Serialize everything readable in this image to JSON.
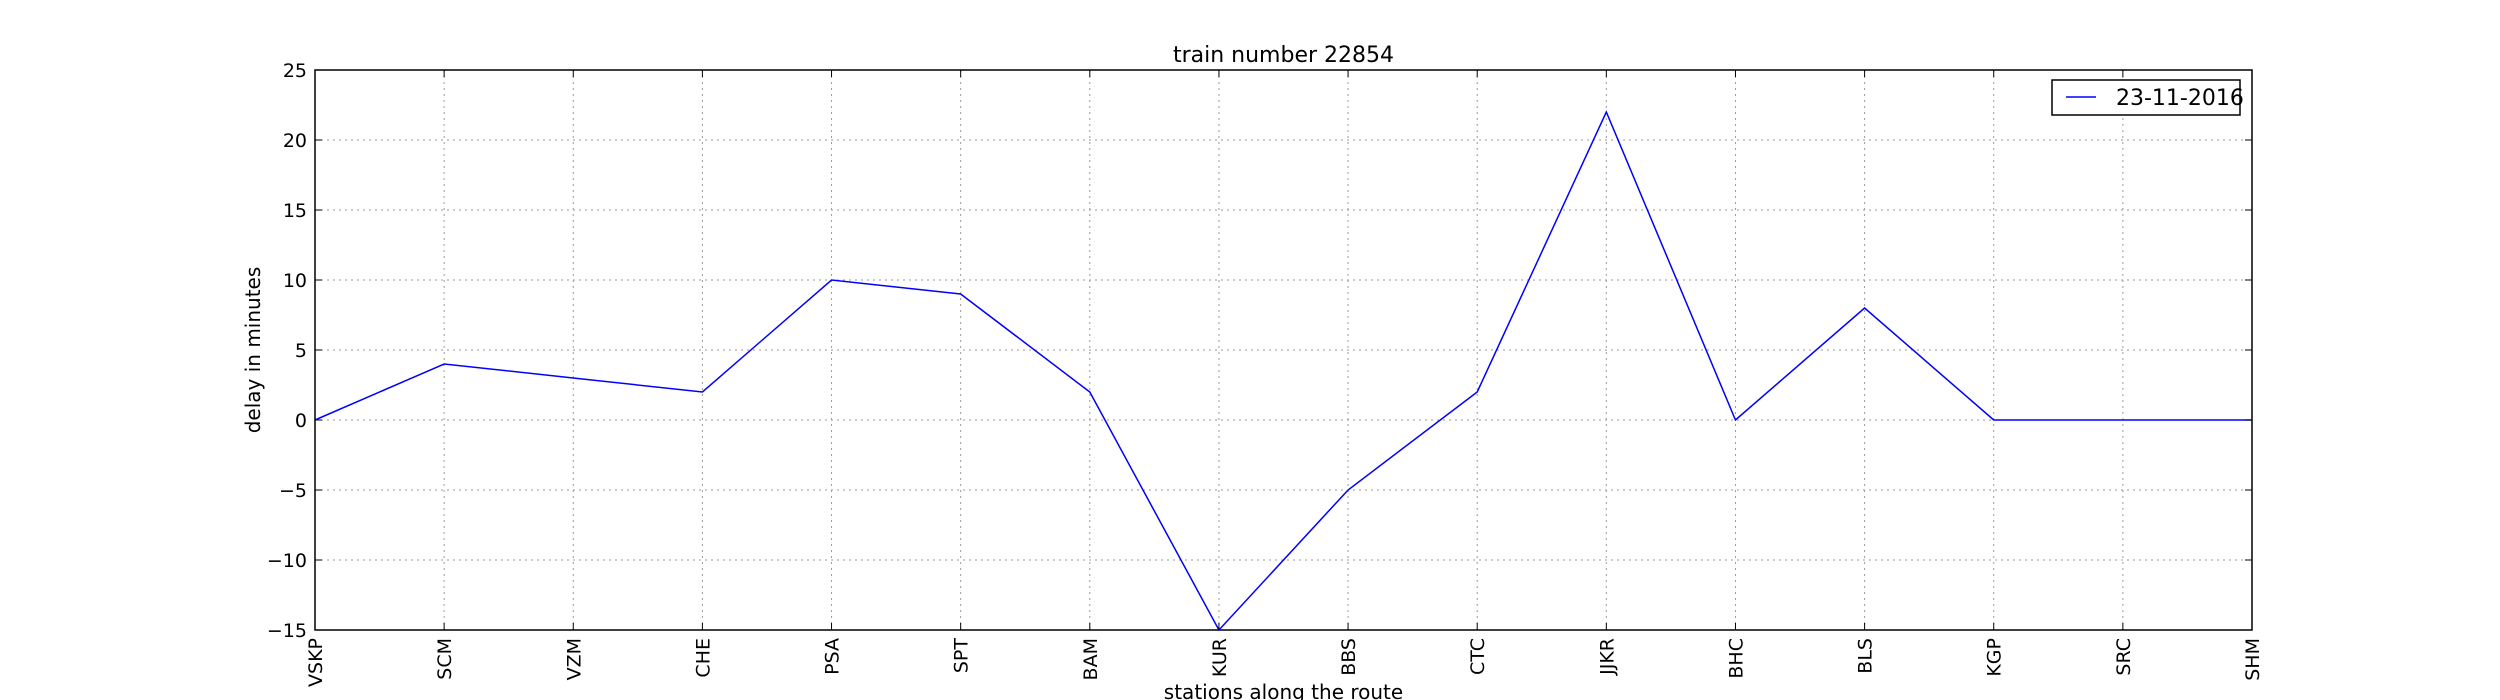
{
  "chart_data": {
    "type": "line",
    "title": "train number 22854",
    "xlabel": "stations along the route",
    "ylabel": "delay in minutes",
    "categories": [
      "VSKP",
      "SCM",
      "VZM",
      "CHE",
      "PSA",
      "SPT",
      "BAM",
      "KUR",
      "BBS",
      "CTC",
      "JJKR",
      "BHC",
      "BLS",
      "KGP",
      "SRC",
      "SHM"
    ],
    "series": [
      {
        "name": "23-11-2016",
        "values": [
          0,
          4,
          3,
          2,
          10,
          9,
          2,
          -15,
          -5,
          2,
          22,
          0,
          8,
          0,
          0,
          0
        ],
        "color": "#0000ff"
      }
    ],
    "ylim": [
      -15,
      25
    ],
    "yticks": [
      -15,
      -10,
      -5,
      0,
      5,
      10,
      15,
      20,
      25
    ],
    "ytick_labels": [
      "−15",
      "−10",
      "−5",
      "0",
      "5",
      "10",
      "15",
      "20",
      "25"
    ],
    "grid": true,
    "legend_position": "top-right"
  }
}
